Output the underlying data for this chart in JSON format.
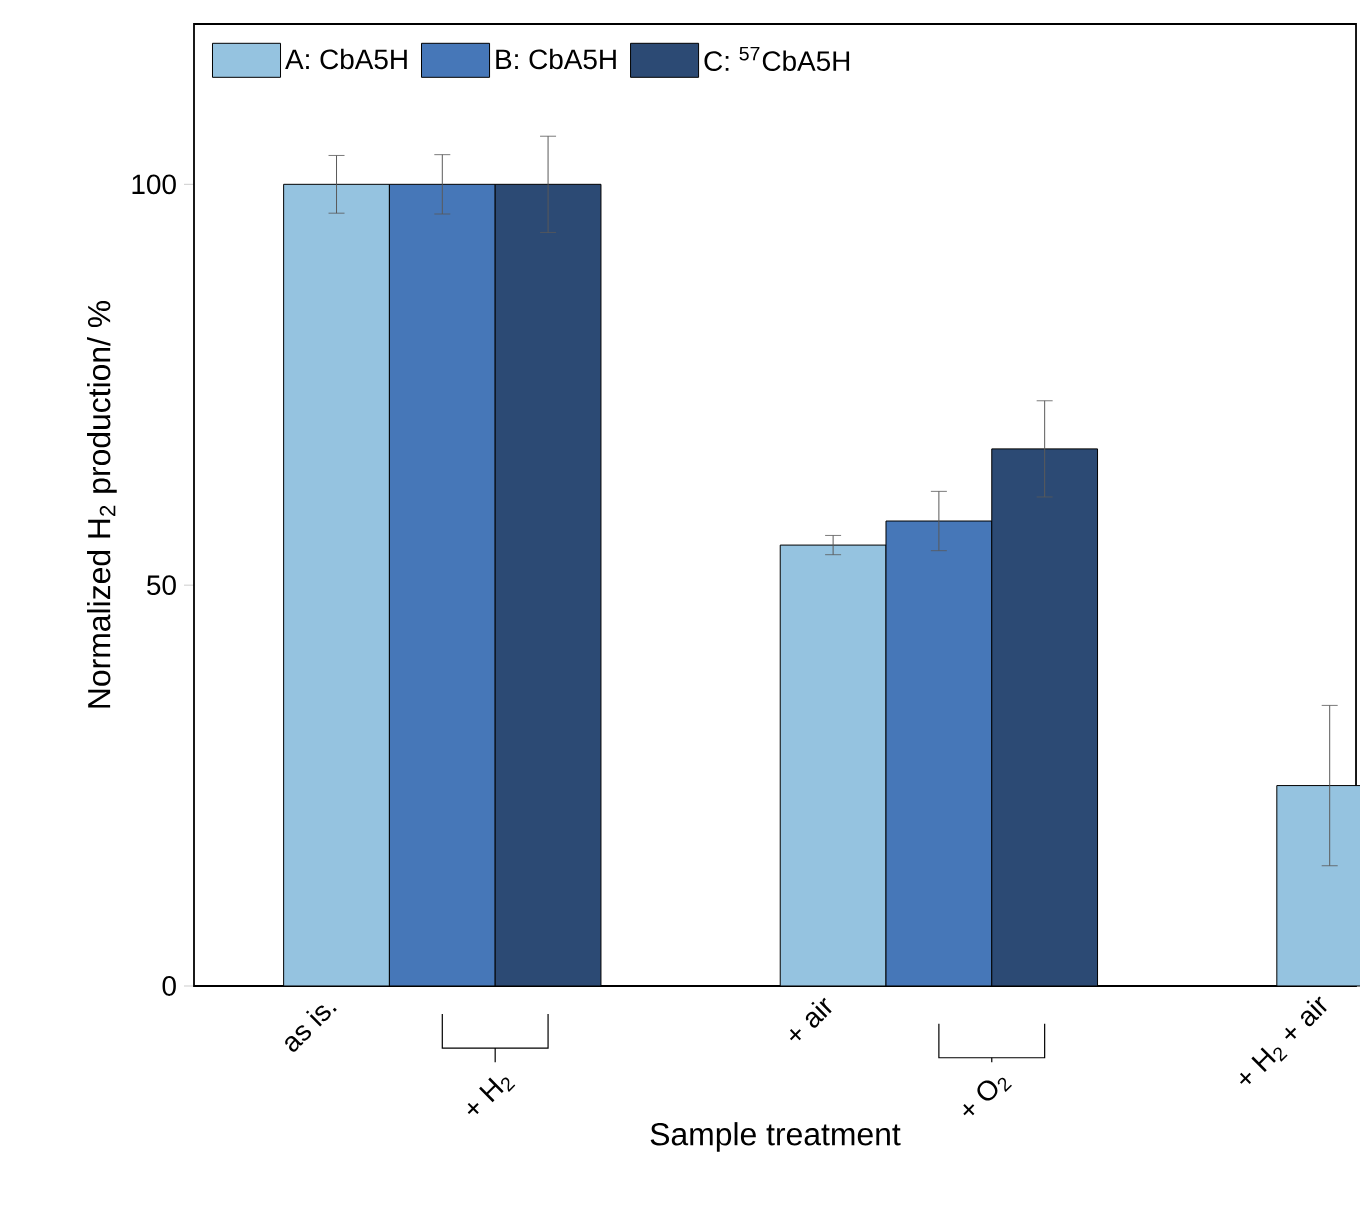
{
  "chart_data": {
    "type": "bar",
    "xlabel": "Sample treatment",
    "ylabel": "Normalized H$_{2}$ production/ %",
    "categories": [
      "as is.",
      "+ air",
      "+ H$_{2}$ + air"
    ],
    "annotations": [
      "+ H$_{2}$",
      "+ O$_{2}$"
    ],
    "series": [
      {
        "name": "A: CbA5H",
        "color": "#95c3e0",
        "values": [
          100,
          55,
          25
        ],
        "errors": [
          3.6,
          1.2,
          10
        ]
      },
      {
        "name": "B: CbA5H",
        "color": "#4677b8",
        "values": [
          100,
          58,
          null
        ],
        "errors": [
          3.7,
          3.7,
          null
        ]
      },
      {
        "name": "C: $^{57}$CbA5H",
        "color": "#2c4a74",
        "values": [
          100,
          67,
          null
        ],
        "errors": [
          6,
          6,
          null
        ]
      }
    ],
    "ylim": [
      0,
      120
    ],
    "yticks": [
      0,
      50,
      100
    ],
    "legend": "top left",
    "grid": false
  }
}
